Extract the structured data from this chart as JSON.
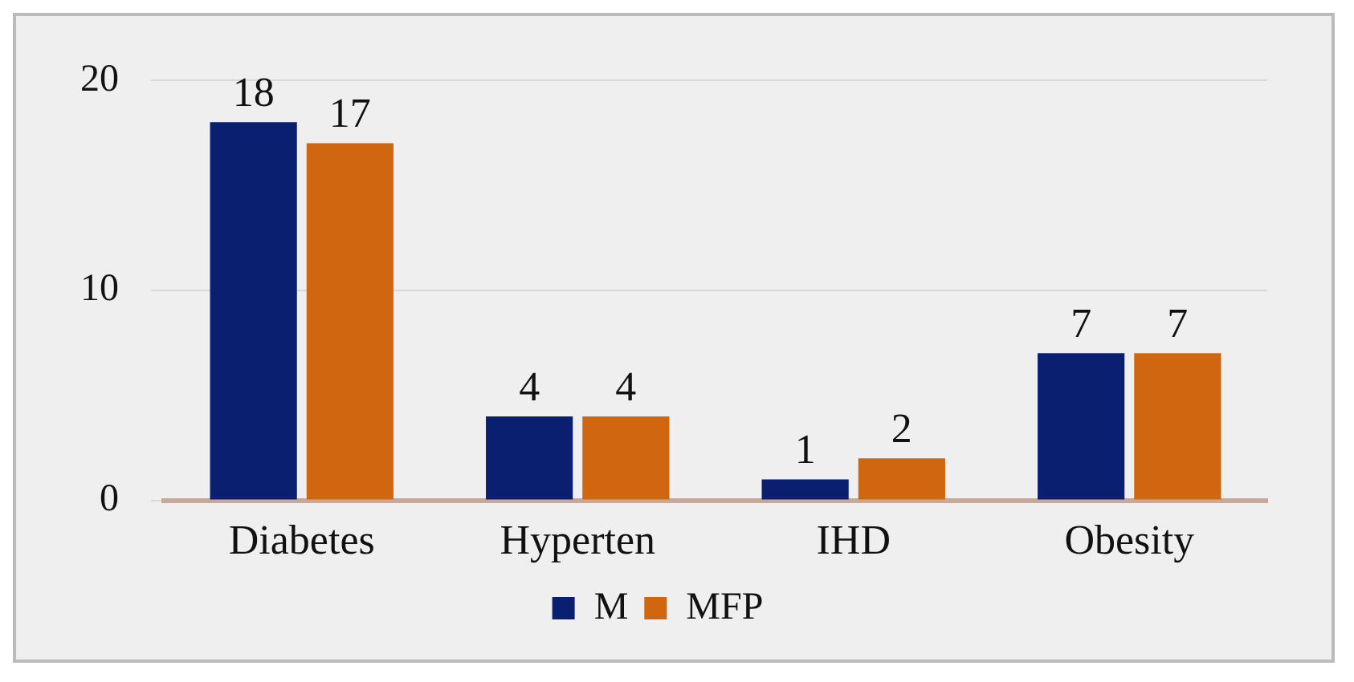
{
  "chart_data": {
    "type": "bar",
    "categories": [
      "Diabetes",
      "Hyperten",
      "IHD",
      "Obesity"
    ],
    "series": [
      {
        "name": "M",
        "color": "#0b1f70",
        "values": [
          18,
          4,
          1,
          7
        ]
      },
      {
        "name": "MFP",
        "color": "#d0660f",
        "values": [
          17,
          4,
          2,
          7
        ]
      }
    ],
    "ylim": [
      0,
      20
    ],
    "yticks": [
      0,
      10,
      20
    ],
    "grid": "y",
    "legend": "bottom",
    "data_labels": true
  }
}
